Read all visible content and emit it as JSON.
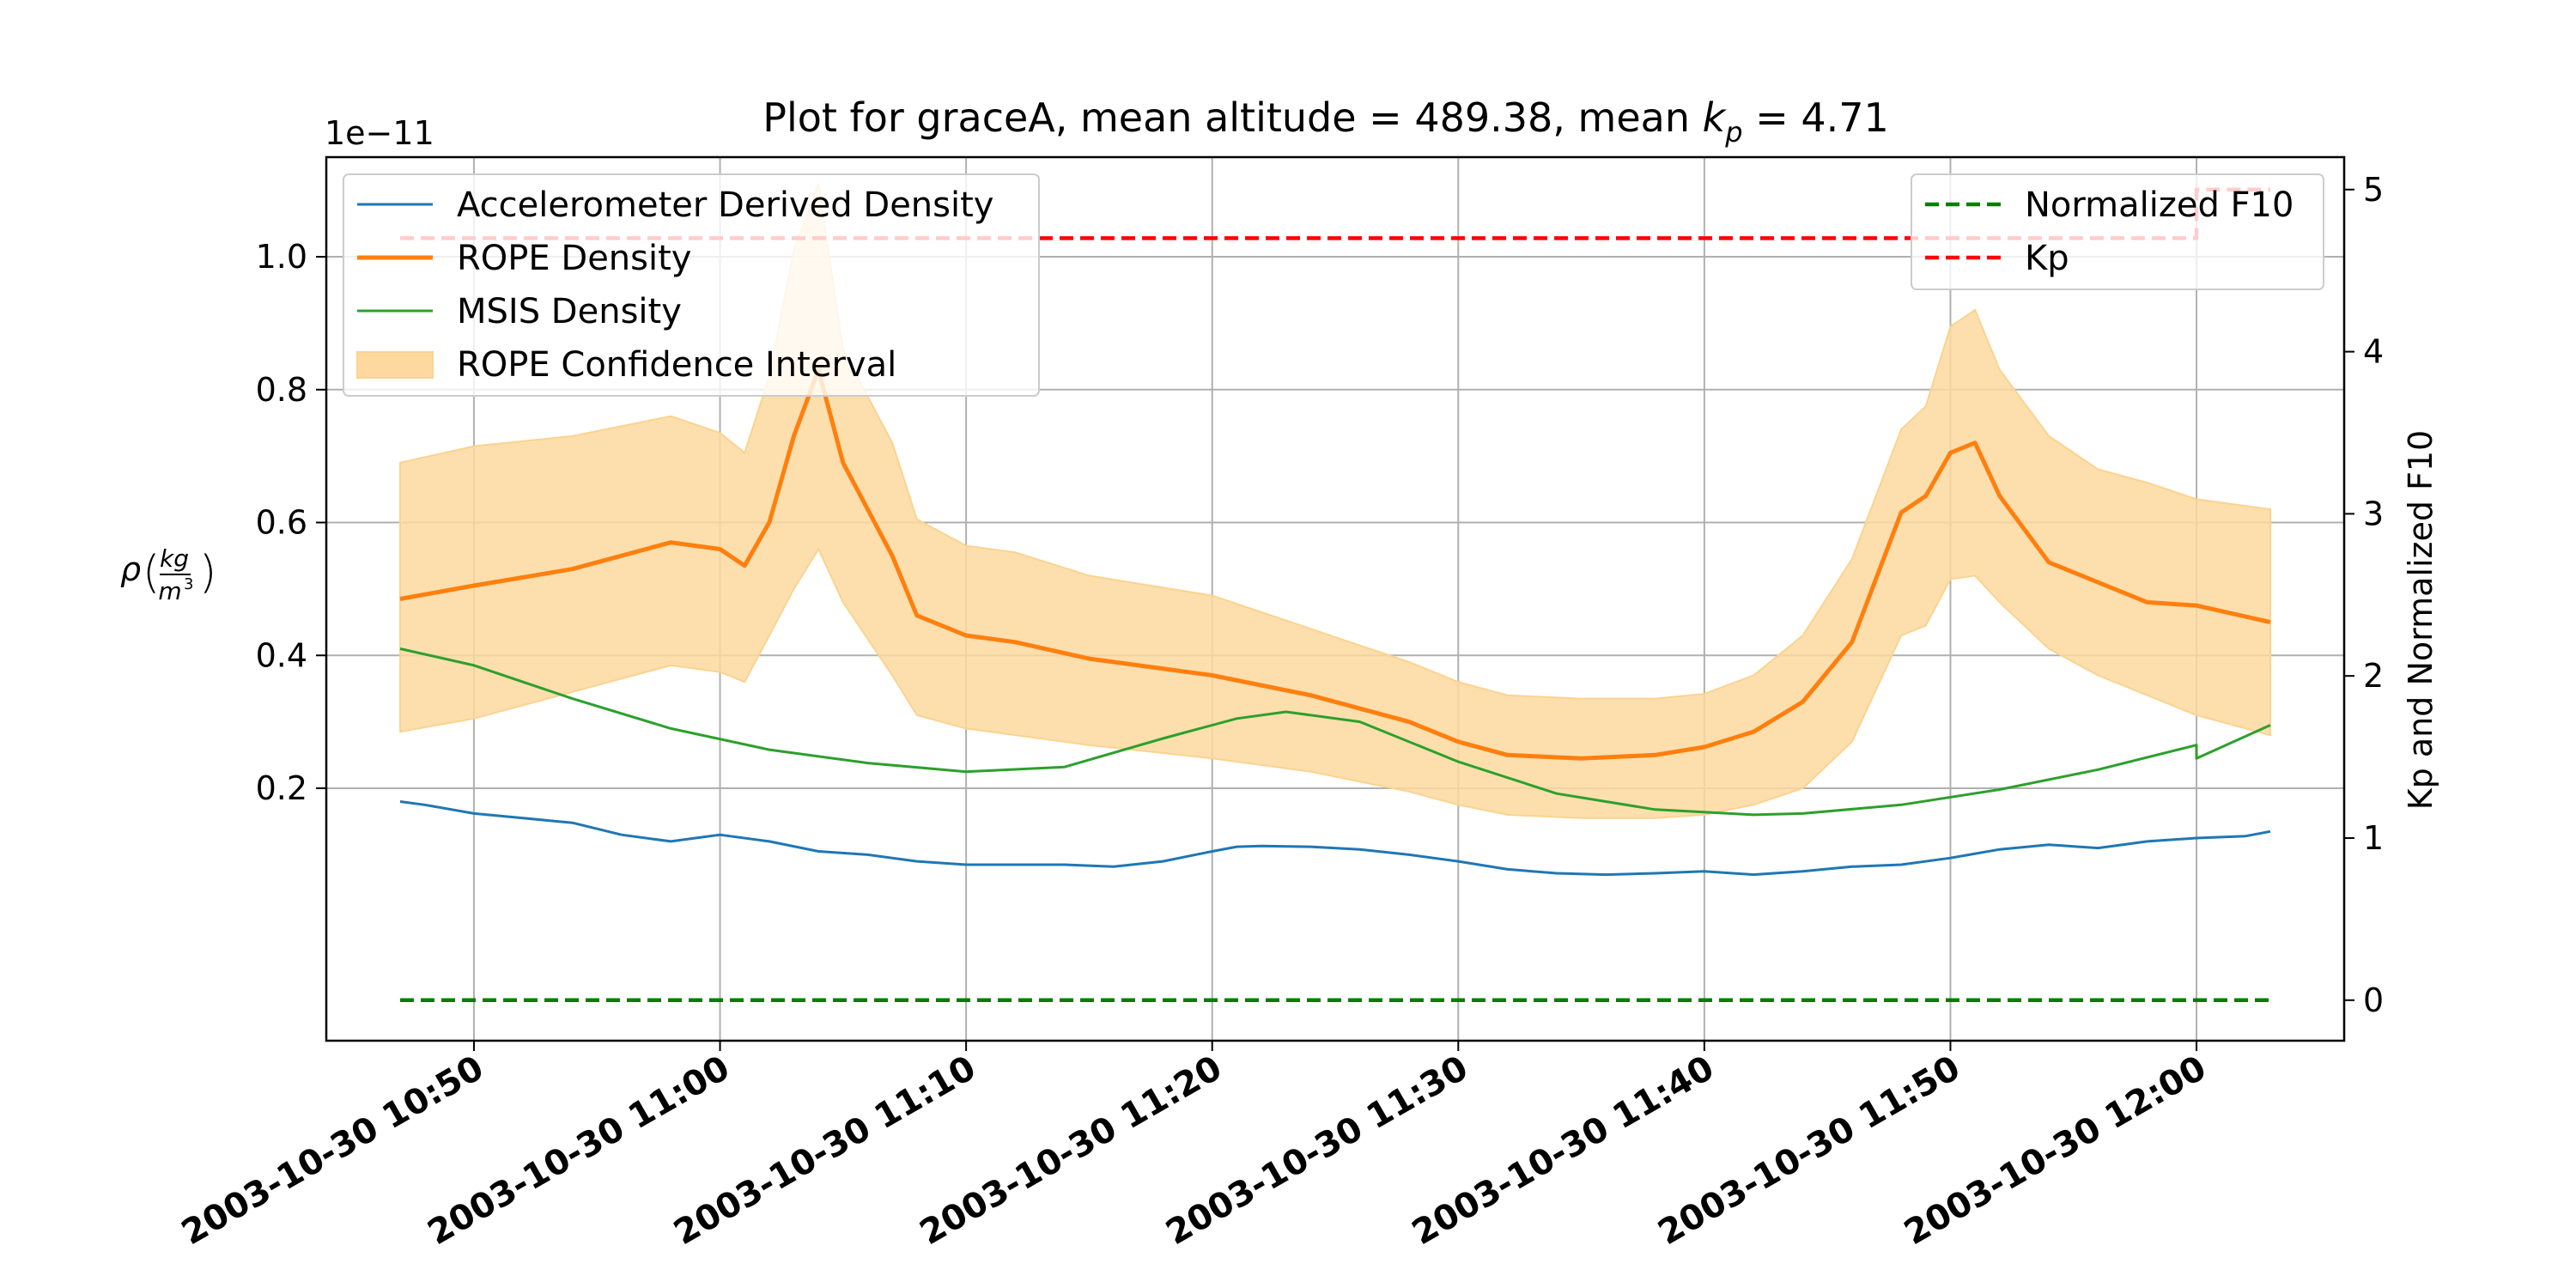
{
  "chart_data": {
    "type": "line",
    "title": {
      "prefix": "Plot for graceA, mean altitude = 489.38, mean ",
      "kp_symbol": "k",
      "kp_subscript": "p",
      "suffix": " = 4.71"
    },
    "x_axis": {
      "type": "time",
      "range": [
        "2003-10-30 10:44",
        "2003-10-30 12:06"
      ],
      "tick_labels": [
        "2003-10-30 10:50",
        "2003-10-30 11:00",
        "2003-10-30 11:10",
        "2003-10-30 11:20",
        "2003-10-30 11:30",
        "2003-10-30 11:40",
        "2003-10-30 11:50",
        "2003-10-30 12:00"
      ],
      "tick_times": [
        "10:50",
        "11:00",
        "11:10",
        "11:20",
        "11:30",
        "11:40",
        "11:50",
        "12:00"
      ]
    },
    "y_left": {
      "label_symbol": "ρ",
      "label_units_num": "kg",
      "label_units_den": "m",
      "label_units_den_exp": "3",
      "offset_text": "1e−11",
      "range": [
        -0.18,
        1.15
      ],
      "ticks": [
        0.2,
        0.4,
        0.6,
        0.8,
        1.0
      ],
      "tick_labels": [
        "0.2",
        "0.4",
        "0.6",
        "0.8",
        "1.0"
      ]
    },
    "y_right": {
      "label": "Kp and Normalized F10",
      "range": [
        -0.25,
        5.2
      ],
      "ticks": [
        0,
        1,
        2,
        3,
        4,
        5
      ],
      "tick_labels": [
        "0",
        "1",
        "2",
        "3",
        "4",
        "5"
      ]
    },
    "grid": true,
    "legend_left": {
      "position": "upper-left",
      "entries": [
        {
          "label": "Accelerometer Derived Density",
          "color": "#1f77b4",
          "kind": "line"
        },
        {
          "label": "ROPE Density",
          "color": "#ff7f0e",
          "kind": "line-thick"
        },
        {
          "label": "MSIS Density",
          "color": "#2ca02c",
          "kind": "line"
        },
        {
          "label": "ROPE Confidence Interval",
          "color": "#fdd9a0",
          "kind": "patch"
        }
      ]
    },
    "legend_right": {
      "position": "upper-right",
      "entries": [
        {
          "label": "Normalized F10",
          "color": "#008000",
          "kind": "dashed"
        },
        {
          "label": "Kp",
          "color": "#ff0000",
          "kind": "dashed"
        }
      ]
    },
    "series": [
      {
        "name": "Accelerometer Derived Density",
        "axis": "left",
        "color": "#1f77b4",
        "x": [
          "10:47",
          "10:48",
          "10:50",
          "10:52",
          "10:54",
          "10:56",
          "10:58",
          "10:59",
          "11:00",
          "11:02",
          "11:04",
          "11:06",
          "11:08",
          "11:10",
          "11:12",
          "11:14",
          "11:16",
          "11:18",
          "11:20",
          "11:21",
          "11:22",
          "11:24",
          "11:26",
          "11:28",
          "11:30",
          "11:32",
          "11:34",
          "11:36",
          "11:38",
          "11:40",
          "11:42",
          "11:44",
          "11:46",
          "11:48",
          "11:50",
          "11:52",
          "11:54",
          "11:56",
          "11:58",
          "12:00",
          "12:02",
          "12:03"
        ],
        "values": [
          0.18,
          0.175,
          0.162,
          0.155,
          0.148,
          0.13,
          0.12,
          0.125,
          0.13,
          0.12,
          0.105,
          0.1,
          0.09,
          0.085,
          0.085,
          0.085,
          0.082,
          0.09,
          0.105,
          0.112,
          0.113,
          0.112,
          0.108,
          0.1,
          0.09,
          0.078,
          0.072,
          0.07,
          0.072,
          0.075,
          0.07,
          0.075,
          0.082,
          0.085,
          0.095,
          0.108,
          0.115,
          0.11,
          0.12,
          0.125,
          0.128,
          0.135
        ]
      },
      {
        "name": "ROPE Density",
        "axis": "left",
        "color": "#ff7f0e",
        "x": [
          "10:47",
          "10:50",
          "10:54",
          "10:56",
          "10:58",
          "11:00",
          "11:01",
          "11:02",
          "11:03",
          "11:04",
          "11:05",
          "11:07",
          "11:08",
          "11:10",
          "11:12",
          "11:15",
          "11:20",
          "11:24",
          "11:28",
          "11:30",
          "11:32",
          "11:35",
          "11:38",
          "11:40",
          "11:42",
          "11:44",
          "11:46",
          "11:48",
          "11:49",
          "11:50",
          "11:51",
          "11:52",
          "11:54",
          "11:56",
          "11:58",
          "12:00",
          "12:03"
        ],
        "values": [
          0.485,
          0.505,
          0.53,
          0.55,
          0.57,
          0.56,
          0.535,
          0.6,
          0.73,
          0.83,
          0.69,
          0.55,
          0.46,
          0.43,
          0.42,
          0.395,
          0.37,
          0.34,
          0.3,
          0.27,
          0.25,
          0.245,
          0.25,
          0.262,
          0.285,
          0.33,
          0.42,
          0.615,
          0.64,
          0.705,
          0.72,
          0.64,
          0.54,
          0.51,
          0.48,
          0.475,
          0.45
        ]
      },
      {
        "name": "MSIS Density",
        "axis": "left",
        "color": "#2ca02c",
        "x": [
          "10:47",
          "10:50",
          "10:54",
          "10:58",
          "11:02",
          "11:06",
          "11:10",
          "11:14",
          "11:18",
          "11:21",
          "11:23",
          "11:26",
          "11:30",
          "11:34",
          "11:38",
          "11:42",
          "11:44",
          "11:48",
          "11:52",
          "11:56",
          "12:00",
          "12:00",
          "12:03"
        ],
        "values": [
          0.41,
          0.385,
          0.335,
          0.29,
          0.258,
          0.238,
          0.225,
          0.232,
          0.275,
          0.305,
          0.315,
          0.3,
          0.24,
          0.192,
          0.168,
          0.16,
          0.162,
          0.175,
          0.198,
          0.228,
          0.265,
          0.245,
          0.295
        ]
      },
      {
        "name": "ROPE Confidence Interval (upper)",
        "axis": "left",
        "color": "#fdd9a0",
        "x": [
          "10:47",
          "10:50",
          "10:54",
          "10:58",
          "11:00",
          "11:01",
          "11:02",
          "11:03",
          "11:04",
          "11:05",
          "11:07",
          "11:08",
          "11:10",
          "11:12",
          "11:15",
          "11:20",
          "11:24",
          "11:28",
          "11:30",
          "11:32",
          "11:35",
          "11:38",
          "11:40",
          "11:42",
          "11:44",
          "11:46",
          "11:48",
          "11:49",
          "11:50",
          "11:51",
          "11:52",
          "11:54",
          "11:56",
          "11:58",
          "12:00",
          "12:03"
        ],
        "values": [
          0.69,
          0.715,
          0.73,
          0.76,
          0.735,
          0.705,
          0.82,
          1.01,
          1.11,
          0.86,
          0.72,
          0.605,
          0.565,
          0.555,
          0.52,
          0.49,
          0.44,
          0.39,
          0.36,
          0.34,
          0.335,
          0.335,
          0.342,
          0.37,
          0.43,
          0.545,
          0.74,
          0.775,
          0.895,
          0.92,
          0.83,
          0.73,
          0.68,
          0.66,
          0.635,
          0.62
        ]
      },
      {
        "name": "ROPE Confidence Interval (lower)",
        "axis": "left",
        "color": "#fdd9a0",
        "x": [
          "10:47",
          "10:50",
          "10:54",
          "10:58",
          "11:00",
          "11:01",
          "11:02",
          "11:03",
          "11:04",
          "11:05",
          "11:07",
          "11:08",
          "11:10",
          "11:12",
          "11:15",
          "11:20",
          "11:24",
          "11:28",
          "11:30",
          "11:32",
          "11:35",
          "11:38",
          "11:40",
          "11:42",
          "11:44",
          "11:46",
          "11:48",
          "11:49",
          "11:50",
          "11:51",
          "11:52",
          "11:54",
          "11:56",
          "11:58",
          "12:00",
          "12:03"
        ],
        "values": [
          0.285,
          0.305,
          0.345,
          0.385,
          0.375,
          0.36,
          0.43,
          0.5,
          0.56,
          0.48,
          0.37,
          0.31,
          0.29,
          0.28,
          0.265,
          0.245,
          0.225,
          0.195,
          0.175,
          0.16,
          0.155,
          0.155,
          0.16,
          0.175,
          0.2,
          0.27,
          0.43,
          0.445,
          0.515,
          0.52,
          0.48,
          0.41,
          0.37,
          0.34,
          0.31,
          0.28
        ]
      },
      {
        "name": "Normalized F10",
        "axis": "right",
        "color": "#008000",
        "dashed": true,
        "x": [
          "10:47",
          "12:03"
        ],
        "values": [
          0.0,
          0.0
        ]
      },
      {
        "name": "Kp",
        "axis": "right",
        "color": "#ff0000",
        "dashed": true,
        "x": [
          "10:47",
          "12:00",
          "12:00",
          "12:03"
        ],
        "values": [
          4.7,
          4.7,
          5.0,
          5.0
        ]
      }
    ]
  }
}
